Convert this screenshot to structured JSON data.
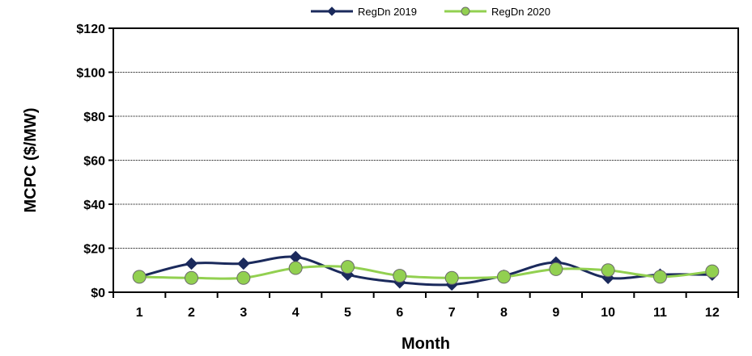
{
  "chart_data": {
    "type": "line",
    "title": "",
    "xlabel": "Month",
    "ylabel": "MCPC ($/MW)",
    "categories": [
      "1",
      "2",
      "3",
      "4",
      "5",
      "6",
      "7",
      "8",
      "9",
      "10",
      "11",
      "12"
    ],
    "y_tick_labels": [
      "$0",
      "$20",
      "$40",
      "$60",
      "$80",
      "$100",
      "$120"
    ],
    "ylim": [
      0,
      120
    ],
    "grid": true,
    "legend_position": "top",
    "series": [
      {
        "name": "RegDn 2019",
        "marker": "diamond",
        "color": "#1b2a5c",
        "values": [
          7,
          13,
          13,
          16,
          8,
          4.5,
          3.5,
          7.5,
          13.5,
          6.5,
          8,
          8
        ]
      },
      {
        "name": "RegDn 2020",
        "marker": "circle",
        "color": "#92d050",
        "values": [
          7,
          6.5,
          6.5,
          11,
          11.5,
          7.5,
          6.5,
          7,
          10.5,
          10,
          7,
          9.5
        ]
      }
    ]
  }
}
